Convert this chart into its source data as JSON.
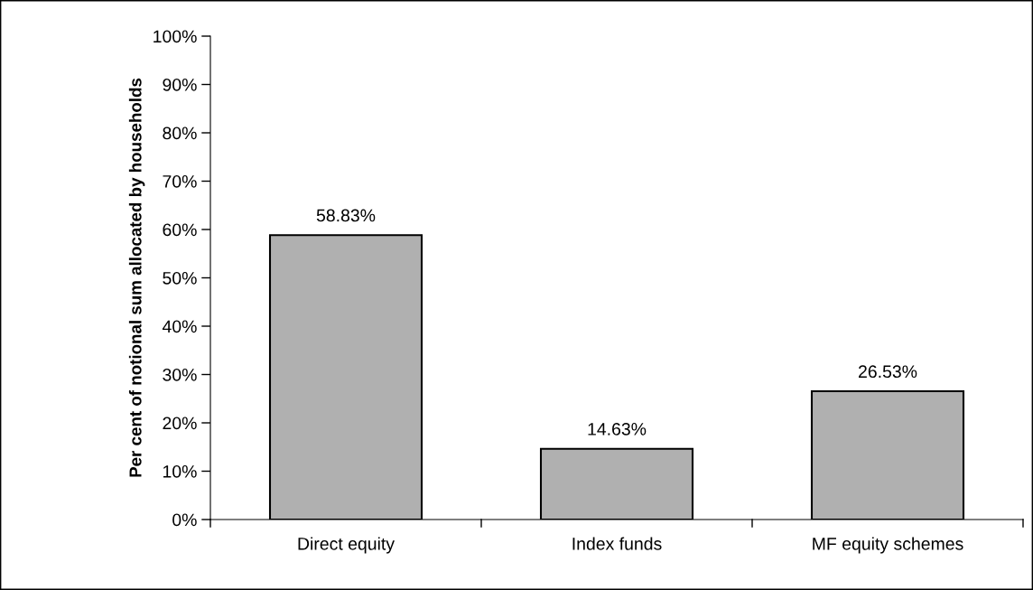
{
  "chart_data": {
    "type": "bar",
    "ylabel": "Per cent of notional sum allocated by households",
    "categories": [
      "Direct equity",
      "Index funds",
      "MF equity schemes"
    ],
    "values": [
      58.83,
      14.63,
      26.53
    ],
    "color": "#b0b0b0",
    "ylim": [
      0,
      100
    ],
    "yticks": [
      {
        "value": 0,
        "label": "0%"
      },
      {
        "value": 10,
        "label": "10%"
      },
      {
        "value": 20,
        "label": "20%"
      },
      {
        "value": 30,
        "label": "30%"
      },
      {
        "value": 40,
        "label": "40%"
      },
      {
        "value": 50,
        "label": "50%"
      },
      {
        "value": 60,
        "label": "60%"
      },
      {
        "value": 70,
        "label": "70%"
      },
      {
        "value": 80,
        "label": "80%"
      },
      {
        "value": 90,
        "label": "90%"
      },
      {
        "value": 100,
        "label": "100%"
      }
    ],
    "value_labels": [
      "58.83%",
      "14.63%",
      "26.53%"
    ],
    "grid": false,
    "legend": false
  }
}
